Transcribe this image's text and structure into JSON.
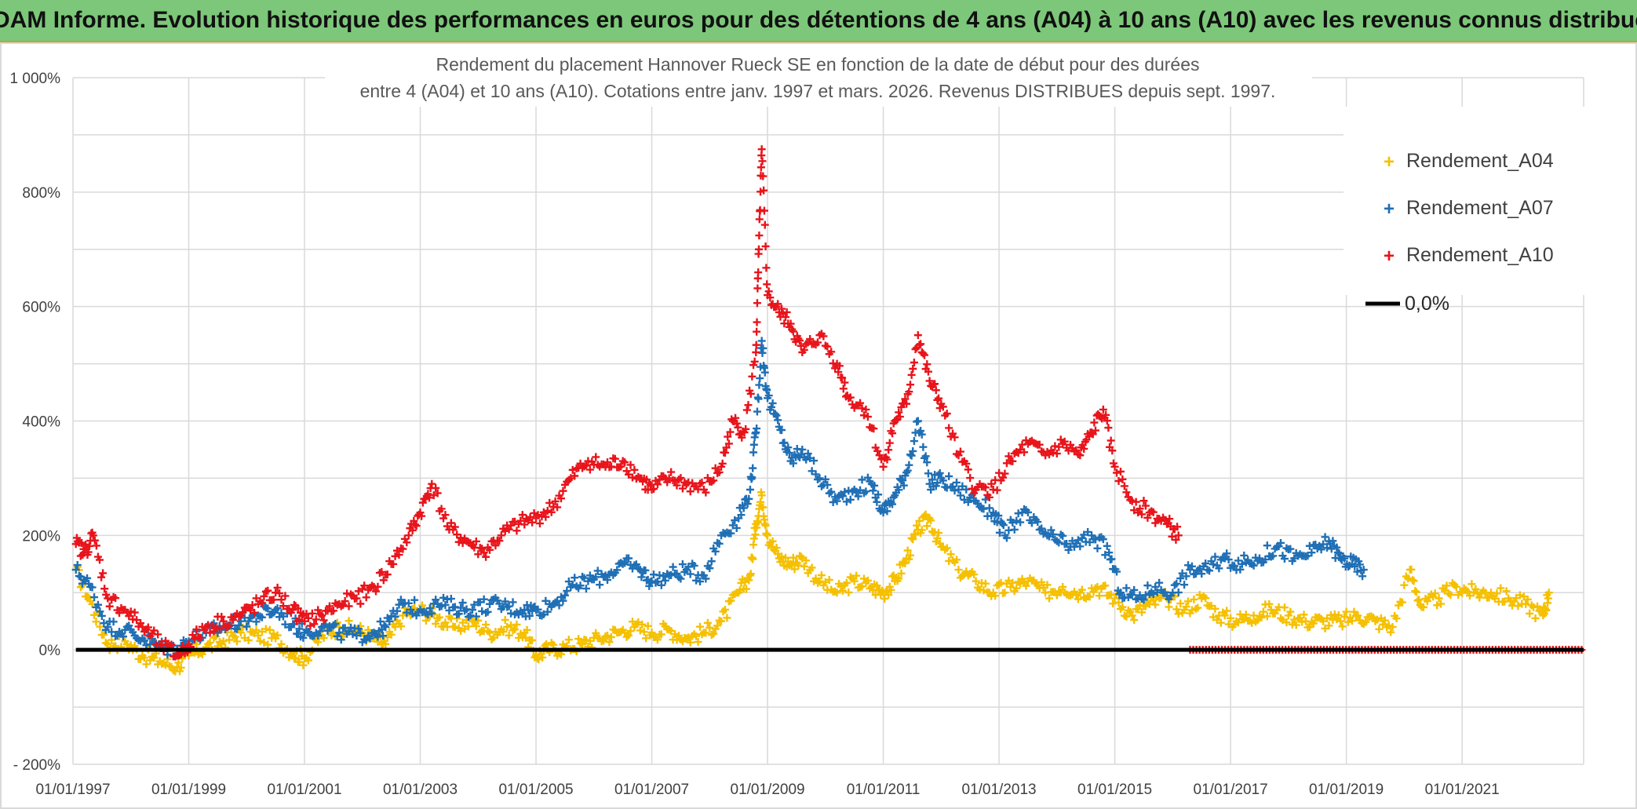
{
  "banner": {
    "title": "ADAM Informe. Evolution historique des performances en euros pour des détentions de 4 ans (A04) à 10 ans (A10) avec les revenus connus distribués"
  },
  "colors": {
    "banner_bg": "#7dc77a",
    "a04": "#f5c000",
    "a07": "#1f6fb5",
    "a10": "#e8141b",
    "zero": "#000000"
  },
  "chart_data": {
    "type": "scatter",
    "title": [
      "Rendement du placement Hannover Rueck SE en fonction de la date de début pour des durées",
      "entre 4 (A04) et 10 ans (A10). Cotations entre janv. 1997 et mars. 2026. Revenus DISTRIBUES depuis sept. 1997."
    ],
    "xlabel": "",
    "ylabel": "",
    "xlim": [
      1997.0,
      2023.1
    ],
    "ylim": [
      -200,
      1000
    ],
    "x_ticks": [
      {
        "value": 1997,
        "label": "01/01/1997"
      },
      {
        "value": 1999,
        "label": "01/01/1999"
      },
      {
        "value": 2001,
        "label": "01/01/2001"
      },
      {
        "value": 2003,
        "label": "01/01/2003"
      },
      {
        "value": 2005,
        "label": "01/01/2005"
      },
      {
        "value": 2007,
        "label": "01/01/2007"
      },
      {
        "value": 2009,
        "label": "01/01/2009"
      },
      {
        "value": 2011,
        "label": "01/01/2011"
      },
      {
        "value": 2013,
        "label": "01/01/2013"
      },
      {
        "value": 2015,
        "label": "01/01/2015"
      },
      {
        "value": 2017,
        "label": "01/01/2017"
      },
      {
        "value": 2019,
        "label": "01/01/2019"
      },
      {
        "value": 2021,
        "label": "01/01/2021"
      }
    ],
    "y_ticks": [
      {
        "value": 1000,
        "label": "1 000%"
      },
      {
        "value": 800,
        "label": "800%"
      },
      {
        "value": 600,
        "label": "600%"
      },
      {
        "value": 400,
        "label": "400%"
      },
      {
        "value": 200,
        "label": "200%"
      },
      {
        "value": 0,
        "label": "0%"
      },
      {
        "value": -200,
        "label": "- 200%"
      }
    ],
    "grid": true,
    "legend_position": "top-right",
    "series": [
      {
        "name": "Rendement_A04",
        "marker": "plus",
        "color_key": "a04",
        "points": [
          [
            1997.05,
            140
          ],
          [
            1997.3,
            85
          ],
          [
            1997.6,
            10
          ],
          [
            1997.9,
            15
          ],
          [
            1998.2,
            -10
          ],
          [
            1998.5,
            -20
          ],
          [
            1998.8,
            -30
          ],
          [
            1999.0,
            -10
          ],
          [
            1999.3,
            5
          ],
          [
            1999.6,
            15
          ],
          [
            1999.9,
            30
          ],
          [
            2000.2,
            25
          ],
          [
            2000.5,
            20
          ],
          [
            2000.8,
            -5
          ],
          [
            2001.0,
            -15
          ],
          [
            2001.3,
            25
          ],
          [
            2001.6,
            40
          ],
          [
            2001.9,
            35
          ],
          [
            2002.2,
            20
          ],
          [
            2002.4,
            10
          ],
          [
            2002.7,
            60
          ],
          [
            2003.0,
            70
          ],
          [
            2003.3,
            55
          ],
          [
            2003.6,
            40
          ],
          [
            2003.9,
            50
          ],
          [
            2004.2,
            30
          ],
          [
            2004.5,
            40
          ],
          [
            2004.8,
            30
          ],
          [
            2005.0,
            -10
          ],
          [
            2005.2,
            0
          ],
          [
            2005.5,
            5
          ],
          [
            2005.8,
            10
          ],
          [
            2006.1,
            20
          ],
          [
            2006.4,
            30
          ],
          [
            2006.7,
            40
          ],
          [
            2007.0,
            30
          ],
          [
            2007.3,
            35
          ],
          [
            2007.6,
            20
          ],
          [
            2007.9,
            30
          ],
          [
            2008.2,
            50
          ],
          [
            2008.5,
            100
          ],
          [
            2008.7,
            130
          ],
          [
            2008.8,
            220
          ],
          [
            2008.9,
            270
          ],
          [
            2009.0,
            200
          ],
          [
            2009.2,
            160
          ],
          [
            2009.4,
            150
          ],
          [
            2009.6,
            160
          ],
          [
            2009.9,
            120
          ],
          [
            2010.2,
            100
          ],
          [
            2010.5,
            120
          ],
          [
            2010.8,
            110
          ],
          [
            2011.0,
            100
          ],
          [
            2011.2,
            120
          ],
          [
            2011.4,
            160
          ],
          [
            2011.6,
            210
          ],
          [
            2011.8,
            230
          ],
          [
            2012.0,
            180
          ],
          [
            2012.3,
            140
          ],
          [
            2012.6,
            120
          ],
          [
            2012.9,
            100
          ],
          [
            2013.2,
            110
          ],
          [
            2013.5,
            120
          ],
          [
            2013.8,
            100
          ],
          [
            2014.1,
            110
          ],
          [
            2014.4,
            100
          ],
          [
            2014.7,
            110
          ],
          [
            2015.0,
            90
          ],
          [
            2015.3,
            60
          ],
          [
            2015.6,
            80
          ],
          [
            2015.9,
            90
          ],
          [
            2016.2,
            70
          ],
          [
            2016.5,
            90
          ],
          [
            2016.8,
            60
          ],
          [
            2017.1,
            50
          ],
          [
            2017.4,
            60
          ],
          [
            2017.7,
            70
          ],
          [
            2018.0,
            60
          ],
          [
            2018.3,
            50
          ],
          [
            2018.6,
            50
          ],
          [
            2018.9,
            50
          ],
          [
            2019.2,
            60
          ],
          [
            2019.5,
            50
          ],
          [
            2019.8,
            40
          ],
          [
            2020.1,
            140
          ],
          [
            2020.3,
            75
          ],
          [
            2020.6,
            90
          ],
          [
            2020.9,
            110
          ],
          [
            2021.2,
            100
          ],
          [
            2021.5,
            100
          ],
          [
            2021.8,
            90
          ],
          [
            2022.1,
            80
          ],
          [
            2022.4,
            60
          ],
          [
            2022.5,
            100
          ]
        ]
      },
      {
        "name": "Rendement_A07",
        "marker": "plus",
        "color_key": "a07",
        "points": [
          [
            1997.05,
            140
          ],
          [
            1997.3,
            110
          ],
          [
            1997.6,
            40
          ],
          [
            1997.9,
            35
          ],
          [
            1998.2,
            20
          ],
          [
            1998.5,
            5
          ],
          [
            1998.8,
            0
          ],
          [
            1999.0,
            15
          ],
          [
            1999.3,
            30
          ],
          [
            1999.6,
            40
          ],
          [
            1999.9,
            50
          ],
          [
            2000.2,
            60
          ],
          [
            2000.5,
            70
          ],
          [
            2000.8,
            45
          ],
          [
            2001.0,
            30
          ],
          [
            2001.3,
            40
          ],
          [
            2001.6,
            30
          ],
          [
            2001.9,
            25
          ],
          [
            2002.2,
            30
          ],
          [
            2002.4,
            40
          ],
          [
            2002.7,
            80
          ],
          [
            2003.0,
            70
          ],
          [
            2003.3,
            80
          ],
          [
            2003.6,
            75
          ],
          [
            2003.9,
            70
          ],
          [
            2004.2,
            80
          ],
          [
            2004.5,
            75
          ],
          [
            2004.8,
            70
          ],
          [
            2005.0,
            70
          ],
          [
            2005.3,
            80
          ],
          [
            2005.6,
            110
          ],
          [
            2005.9,
            120
          ],
          [
            2006.2,
            130
          ],
          [
            2006.5,
            150
          ],
          [
            2006.8,
            140
          ],
          [
            2007.0,
            120
          ],
          [
            2007.3,
            130
          ],
          [
            2007.6,
            140
          ],
          [
            2007.9,
            130
          ],
          [
            2008.2,
            200
          ],
          [
            2008.5,
            230
          ],
          [
            2008.7,
            280
          ],
          [
            2008.8,
            380
          ],
          [
            2008.9,
            540
          ],
          [
            2009.0,
            440
          ],
          [
            2009.2,
            390
          ],
          [
            2009.4,
            330
          ],
          [
            2009.6,
            350
          ],
          [
            2009.9,
            300
          ],
          [
            2010.2,
            260
          ],
          [
            2010.5,
            280
          ],
          [
            2010.8,
            290
          ],
          [
            2011.0,
            240
          ],
          [
            2011.2,
            270
          ],
          [
            2011.4,
            310
          ],
          [
            2011.6,
            400
          ],
          [
            2011.8,
            290
          ],
          [
            2012.0,
            300
          ],
          [
            2012.3,
            280
          ],
          [
            2012.6,
            260
          ],
          [
            2012.9,
            240
          ],
          [
            2013.1,
            200
          ],
          [
            2013.4,
            240
          ],
          [
            2013.7,
            210
          ],
          [
            2014.0,
            190
          ],
          [
            2014.3,
            180
          ],
          [
            2014.6,
            200
          ],
          [
            2014.9,
            170
          ],
          [
            2015.1,
            100
          ],
          [
            2015.4,
            90
          ],
          [
            2015.7,
            110
          ],
          [
            2016.0,
            100
          ],
          [
            2016.3,
            140
          ],
          [
            2016.6,
            140
          ],
          [
            2016.9,
            160
          ],
          [
            2017.2,
            150
          ],
          [
            2017.5,
            160
          ],
          [
            2017.8,
            180
          ],
          [
            2018.1,
            160
          ],
          [
            2018.4,
            170
          ],
          [
            2018.7,
            190
          ],
          [
            2018.9,
            160
          ],
          [
            2019.1,
            150
          ],
          [
            2019.3,
            140
          ]
        ]
      },
      {
        "name": "Rendement_A10",
        "marker": "plus",
        "color_key": "a10",
        "points": [
          [
            1997.05,
            185
          ],
          [
            1997.2,
            170
          ],
          [
            1997.35,
            200
          ],
          [
            1997.6,
            90
          ],
          [
            1997.9,
            70
          ],
          [
            1998.2,
            40
          ],
          [
            1998.5,
            10
          ],
          [
            1998.8,
            -10
          ],
          [
            1999.0,
            10
          ],
          [
            1999.3,
            40
          ],
          [
            1999.6,
            50
          ],
          [
            1999.9,
            60
          ],
          [
            2000.2,
            80
          ],
          [
            2000.5,
            100
          ],
          [
            2000.8,
            70
          ],
          [
            2001.0,
            50
          ],
          [
            2001.3,
            60
          ],
          [
            2001.6,
            80
          ],
          [
            2001.9,
            90
          ],
          [
            2002.2,
            110
          ],
          [
            2002.5,
            150
          ],
          [
            2002.8,
            200
          ],
          [
            2003.0,
            240
          ],
          [
            2003.2,
            290
          ],
          [
            2003.5,
            210
          ],
          [
            2003.8,
            190
          ],
          [
            2004.1,
            170
          ],
          [
            2004.4,
            200
          ],
          [
            2004.7,
            220
          ],
          [
            2005.0,
            230
          ],
          [
            2005.3,
            250
          ],
          [
            2005.6,
            300
          ],
          [
            2005.9,
            330
          ],
          [
            2006.2,
            320
          ],
          [
            2006.5,
            330
          ],
          [
            2006.8,
            300
          ],
          [
            2007.0,
            280
          ],
          [
            2007.3,
            300
          ],
          [
            2007.6,
            290
          ],
          [
            2007.9,
            280
          ],
          [
            2008.2,
            320
          ],
          [
            2008.4,
            400
          ],
          [
            2008.6,
            380
          ],
          [
            2008.8,
            520
          ],
          [
            2008.85,
            700
          ],
          [
            2008.9,
            875
          ],
          [
            2009.0,
            620
          ],
          [
            2009.2,
            590
          ],
          [
            2009.4,
            570
          ],
          [
            2009.6,
            520
          ],
          [
            2009.9,
            550
          ],
          [
            2010.2,
            500
          ],
          [
            2010.4,
            440
          ],
          [
            2010.7,
            420
          ],
          [
            2011.0,
            320
          ],
          [
            2011.2,
            400
          ],
          [
            2011.4,
            430
          ],
          [
            2011.6,
            550
          ],
          [
            2011.8,
            470
          ],
          [
            2012.0,
            430
          ],
          [
            2012.3,
            340
          ],
          [
            2012.6,
            280
          ],
          [
            2012.9,
            280
          ],
          [
            2013.2,
            330
          ],
          [
            2013.5,
            360
          ],
          [
            2013.8,
            340
          ],
          [
            2014.1,
            360
          ],
          [
            2014.4,
            340
          ],
          [
            2014.6,
            380
          ],
          [
            2014.8,
            420
          ],
          [
            2015.0,
            320
          ],
          [
            2015.3,
            260
          ],
          [
            2015.6,
            240
          ],
          [
            2015.9,
            220
          ],
          [
            2016.1,
            200
          ]
        ]
      },
      {
        "name": "Rendement_A10",
        "marker": "plus",
        "color_key": "a10",
        "legend": false,
        "flat_range": [
          2016.3,
          2023.1
        ],
        "flat_value": 0
      },
      {
        "name": "0,0%",
        "marker": "line",
        "color_key": "zero",
        "range": [
          1997.05,
          2023.1
        ],
        "value": 0
      }
    ]
  }
}
